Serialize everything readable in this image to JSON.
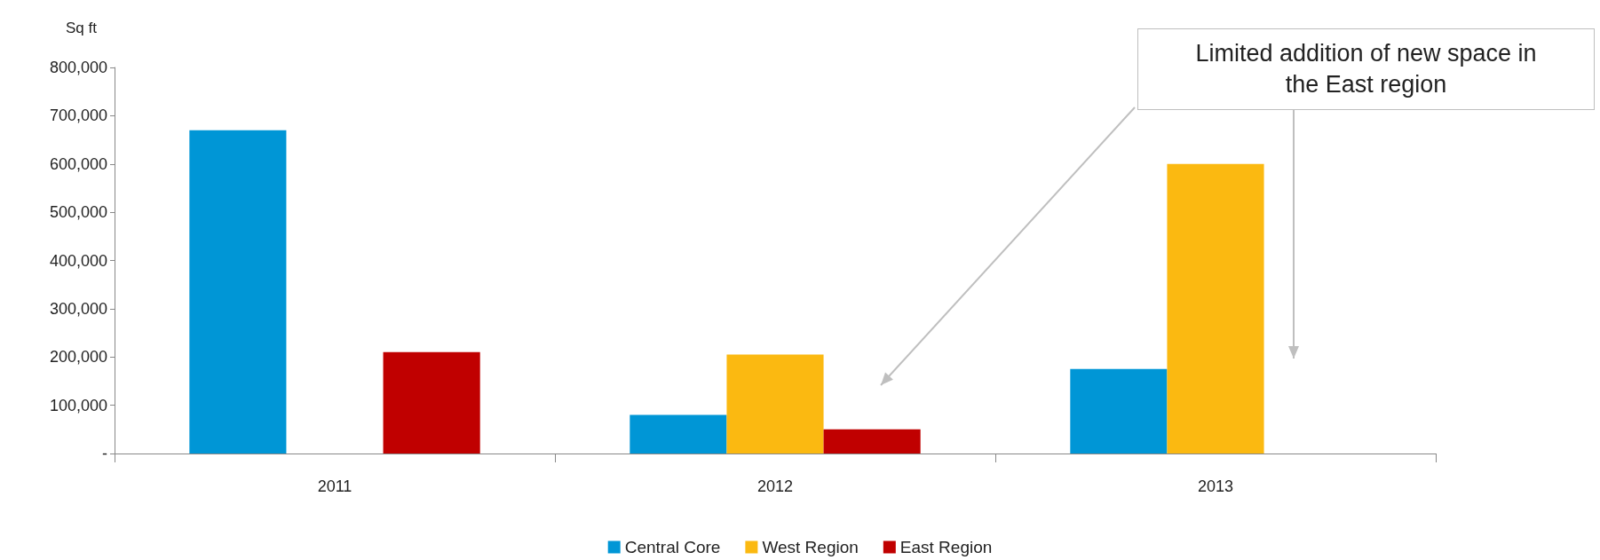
{
  "chart_data": {
    "type": "bar",
    "ylabel": "Sq ft",
    "categories": [
      "2011",
      "2012",
      "2013"
    ],
    "series": [
      {
        "name": "Central Core",
        "color": "#0096d6",
        "values": [
          670000,
          80000,
          175000
        ]
      },
      {
        "name": "West Region",
        "color": "#fbb911",
        "values": [
          0,
          205000,
          600000
        ]
      },
      {
        "name": "East Region",
        "color": "#c00000",
        "values": [
          210000,
          50000,
          0
        ]
      }
    ],
    "ylim": [
      0,
      800000
    ],
    "yticks": [
      {
        "value": 0,
        "label": "-"
      },
      {
        "value": 100000,
        "label": "100,000"
      },
      {
        "value": 200000,
        "label": "200,000"
      },
      {
        "value": 300000,
        "label": "300,000"
      },
      {
        "value": 400000,
        "label": "400,000"
      },
      {
        "value": 500000,
        "label": "500,000"
      },
      {
        "value": 600000,
        "label": "600,000"
      },
      {
        "value": 700000,
        "label": "700,000"
      },
      {
        "value": 800000,
        "label": "800,000"
      }
    ],
    "annotations": [
      "Limited addition of new space in the East region"
    ],
    "grid": false,
    "legend": "bottom"
  }
}
